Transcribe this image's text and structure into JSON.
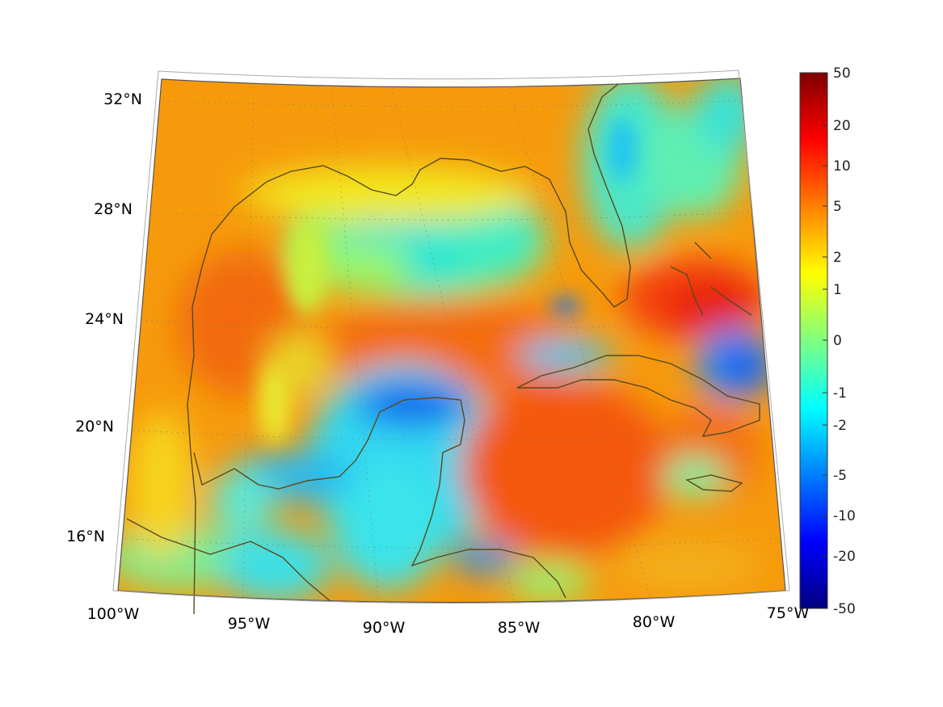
{
  "map": {
    "projection": "conic",
    "longitude_labels": [
      "100°W",
      "95°W",
      "90°W",
      "85°W",
      "80°W",
      "75°W"
    ],
    "latitude_labels": [
      "32°N",
      "28°N",
      "24°N",
      "20°N",
      "16°N"
    ],
    "extent": {
      "lon": [
        -100,
        -75
      ],
      "lat": [
        14,
        33
      ]
    },
    "coastline_color": "#5a4a1e",
    "grid": "dotted"
  },
  "colorbar": {
    "colormap": "jet",
    "tick_labels": [
      "50",
      "20",
      "10",
      "5",
      "2",
      "1",
      "0",
      "-1",
      "-2",
      "-5",
      "-10",
      "-20",
      "-50"
    ],
    "range": [
      -50,
      50
    ],
    "scale": "symmetric-nonlinear"
  },
  "regions": [
    {
      "name": "interior-gulf-low",
      "value": -1
    },
    {
      "name": "yucatan-basin-low",
      "value": -2
    },
    {
      "name": "bay-of-campeche-low",
      "value": -2
    },
    {
      "name": "cuba-north-low",
      "value": -2
    },
    {
      "name": "bahamas-east-low",
      "value": -10
    },
    {
      "name": "bahamas-high",
      "value": 10
    },
    {
      "name": "caribbean-high",
      "value": 5
    },
    {
      "name": "central-gulf-high",
      "value": 5
    },
    {
      "name": "atlantic-se-us-low",
      "value": -1
    }
  ]
}
